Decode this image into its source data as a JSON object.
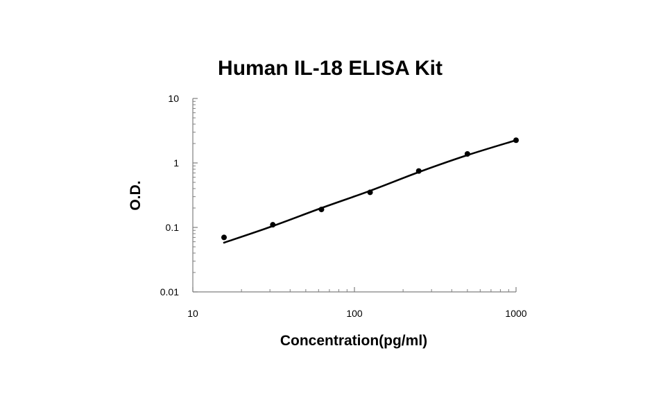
{
  "chart_data": {
    "type": "scatter",
    "title": "Human IL-18 ELISA Kit",
    "xlabel": "Concentration(pg/ml)",
    "ylabel": "O.D.",
    "x_scale": "log",
    "y_scale": "log",
    "xlim": [
      10,
      1000
    ],
    "ylim": [
      0.01,
      10
    ],
    "x_ticks": [
      10,
      100,
      1000
    ],
    "x_tick_labels": [
      "10",
      "100",
      "1000"
    ],
    "y_ticks": [
      0.01,
      0.1,
      1,
      10
    ],
    "y_tick_labels": [
      "0.01",
      "0.1",
      "1",
      "10"
    ],
    "grid": false,
    "series": [
      {
        "points": [
          {
            "x": 15.6,
            "y": 0.07
          },
          {
            "x": 31.25,
            "y": 0.11
          },
          {
            "x": 62.5,
            "y": 0.19
          },
          {
            "x": 125,
            "y": 0.35
          },
          {
            "x": 250,
            "y": 0.75
          },
          {
            "x": 500,
            "y": 1.38
          },
          {
            "x": 1000,
            "y": 2.25
          }
        ],
        "fit_curve": [
          {
            "x": 15.6,
            "y": 0.058
          },
          {
            "x": 31.25,
            "y": 0.105
          },
          {
            "x": 62.5,
            "y": 0.2
          },
          {
            "x": 125,
            "y": 0.37
          },
          {
            "x": 250,
            "y": 0.72
          },
          {
            "x": 500,
            "y": 1.32
          },
          {
            "x": 1000,
            "y": 2.25
          }
        ]
      }
    ]
  }
}
